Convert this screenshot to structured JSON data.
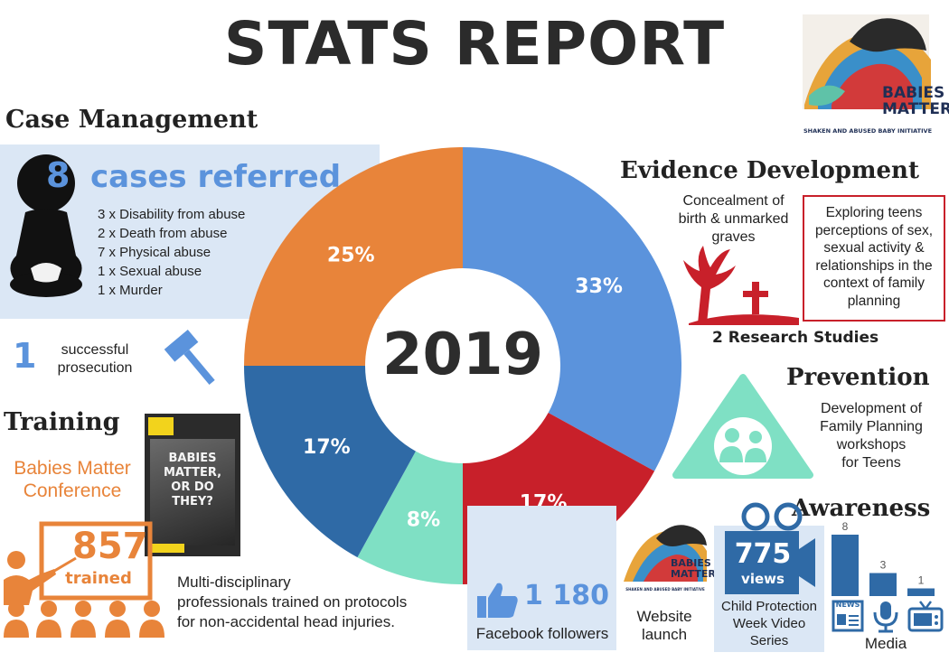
{
  "title": "STATS REPORT",
  "logo": {
    "line1": "BABIES",
    "line2": "MATTER",
    "tagline": "SHAKEN AND ABUSED BABY INITIATIVE"
  },
  "case_management": {
    "heading": "Case Management",
    "count": "8",
    "count_label": "cases referred",
    "items": [
      "3 x Disability from abuse",
      "2 x Death from abuse",
      "7 x Physical abuse",
      "1 x Sexual abuse",
      "1 x Murder"
    ],
    "prosecution_count": "1",
    "prosecution_label_1": "successful",
    "prosecution_label_2": "prosecution"
  },
  "training": {
    "heading": "Training",
    "conference_1": "Babies Matter",
    "conference_2": "Conference",
    "book_1": "BABIES",
    "book_2": "MATTER,",
    "book_3": "OR DO",
    "book_4": "THEY?",
    "trained_count": "857",
    "trained_label": "trained",
    "desc_1": "Multi-disciplinary",
    "desc_2": "professionals trained on protocols",
    "desc_3": "for non-accidental head injuries."
  },
  "evidence": {
    "heading": "Evidence Development",
    "study1_1": "Concealment of",
    "study1_2": "birth & unmarked",
    "study1_3": "graves",
    "study2_1": "Exploring teens",
    "study2_2": "perceptions of sex,",
    "study2_3": "sexual activity &",
    "study2_4": "relationships in the",
    "study2_5": "context of family",
    "study2_6": "planning",
    "summary": "2 Research Studies"
  },
  "prevention": {
    "heading": "Prevention",
    "line1": "Development of",
    "line2": "Family Planning",
    "line3": "workshops",
    "line4": "for Teens"
  },
  "awareness": {
    "heading": "Awareness",
    "facebook_count": "1 180",
    "facebook_label": "Facebook followers",
    "website_1": "Website",
    "website_2": "launch",
    "views_count": "775",
    "views_label": "views",
    "video_1": "Child Protection",
    "video_2": "Week Video",
    "video_3": "Series",
    "media_label": "Media",
    "media_news_icon": "NEWS"
  },
  "chart_data": [
    {
      "type": "pie",
      "title": "2019",
      "categories": [
        "Case Management",
        "Evidence Development",
        "Prevention",
        "Awareness",
        "Training"
      ],
      "values": [
        33,
        17,
        8,
        17,
        25
      ],
      "labels": [
        "33%",
        "17%",
        "8%",
        "17%",
        "25%"
      ],
      "colors": [
        "#5b93dc",
        "#c8202a",
        "#7fe0c4",
        "#2f6aa6",
        "#e8843a"
      ]
    },
    {
      "type": "bar",
      "title": "",
      "categories": [
        "news",
        "radio",
        "tv"
      ],
      "values": [
        8,
        3,
        1
      ],
      "labels": [
        "8",
        "3",
        "1"
      ],
      "color": "#2f6aa6"
    }
  ],
  "colors": {
    "blue": "#5b93dc",
    "red": "#c8202a",
    "teal": "#7fe0c4",
    "darkblue": "#2f6aa6",
    "orange": "#e8843a"
  }
}
